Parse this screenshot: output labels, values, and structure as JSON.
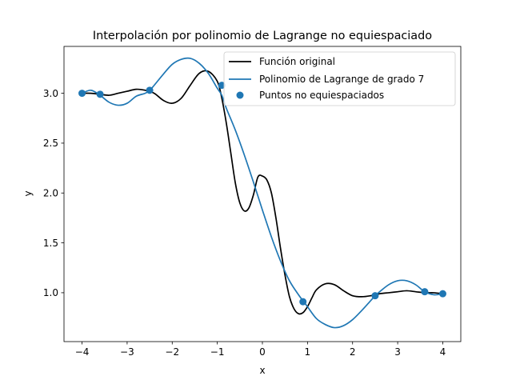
{
  "chart_data": {
    "type": "line",
    "title": "Interpolación por polinomio de Lagrange no equiespaciado",
    "xlabel": "x",
    "ylabel": "y",
    "xlim": [
      -4.4,
      4.4
    ],
    "ylim": [
      0.51,
      3.47
    ],
    "xticks": [
      -4,
      -3,
      -2,
      -1,
      0,
      1,
      2,
      3,
      4
    ],
    "xtick_labels": [
      "−4",
      "−3",
      "−2",
      "−1",
      "0",
      "1",
      "2",
      "3",
      "4"
    ],
    "yticks": [
      1.0,
      1.5,
      2.0,
      2.5,
      3.0
    ],
    "ytick_labels": [
      "1.0",
      "1.5",
      "2.0",
      "2.5",
      "3.0"
    ],
    "grid": false,
    "legend_position": "top-right",
    "series": [
      {
        "name": "Función original",
        "kind": "line",
        "color": "#000000",
        "x": [
          -4.0,
          -3.8,
          -3.6,
          -3.4,
          -3.2,
          -3.0,
          -2.8,
          -2.6,
          -2.4,
          -2.2,
          -2.0,
          -1.8,
          -1.6,
          -1.4,
          -1.2,
          -1.0,
          -0.9,
          -0.8,
          -0.7,
          -0.6,
          -0.5,
          -0.4,
          -0.3,
          -0.2,
          -0.1,
          0.0,
          0.1,
          0.2,
          0.3,
          0.4,
          0.5,
          0.6,
          0.7,
          0.8,
          0.9,
          1.0,
          1.1,
          1.2,
          1.4,
          1.6,
          1.8,
          2.0,
          2.2,
          2.4,
          2.6,
          2.8,
          3.0,
          3.2,
          3.4,
          3.6,
          3.8,
          4.0
        ],
        "y": [
          3.0,
          3.0,
          2.99,
          2.98,
          3.0,
          3.02,
          3.04,
          3.03,
          3.0,
          2.93,
          2.9,
          2.95,
          3.08,
          3.2,
          3.22,
          3.12,
          2.95,
          2.7,
          2.4,
          2.1,
          1.9,
          1.82,
          1.85,
          1.98,
          2.16,
          2.17,
          2.13,
          2.0,
          1.75,
          1.45,
          1.18,
          0.96,
          0.84,
          0.79,
          0.8,
          0.86,
          0.95,
          1.03,
          1.09,
          1.08,
          1.02,
          0.97,
          0.96,
          0.97,
          0.99,
          1.0,
          1.01,
          1.02,
          1.01,
          1.0,
          1.0,
          0.99
        ]
      },
      {
        "name": "Polinomio de Lagrange de grado 7",
        "kind": "line",
        "color": "#1f77b4",
        "x": [
          -4.0,
          -3.8,
          -3.6,
          -3.4,
          -3.2,
          -3.0,
          -2.8,
          -2.6,
          -2.5,
          -2.4,
          -2.2,
          -2.0,
          -1.8,
          -1.6,
          -1.4,
          -1.2,
          -1.0,
          -0.9,
          -0.8,
          -0.6,
          -0.4,
          -0.2,
          0.0,
          0.2,
          0.4,
          0.6,
          0.8,
          0.9,
          1.0,
          1.2,
          1.4,
          1.6,
          1.8,
          2.0,
          2.2,
          2.4,
          2.5,
          2.6,
          2.8,
          3.0,
          3.2,
          3.4,
          3.6,
          3.8,
          4.0
        ],
        "y": [
          3.0,
          3.03,
          2.98,
          2.91,
          2.88,
          2.9,
          2.97,
          3.0,
          3.03,
          3.08,
          3.19,
          3.29,
          3.34,
          3.35,
          3.3,
          3.2,
          3.05,
          2.98,
          2.85,
          2.63,
          2.38,
          2.11,
          1.83,
          1.56,
          1.32,
          1.12,
          0.98,
          0.92,
          0.86,
          0.74,
          0.68,
          0.65,
          0.67,
          0.73,
          0.82,
          0.92,
          0.97,
          1.01,
          1.08,
          1.12,
          1.12,
          1.08,
          1.01,
          0.98,
          0.99
        ]
      },
      {
        "name": "Puntos no equiespaciados",
        "kind": "scatter",
        "color": "#1f77b4",
        "x": [
          -4.0,
          -3.6,
          -2.5,
          -0.9,
          0.9,
          2.5,
          3.6,
          4.0
        ],
        "y": [
          3.0,
          2.99,
          3.03,
          3.08,
          0.91,
          0.97,
          1.01,
          0.99
        ]
      }
    ]
  }
}
